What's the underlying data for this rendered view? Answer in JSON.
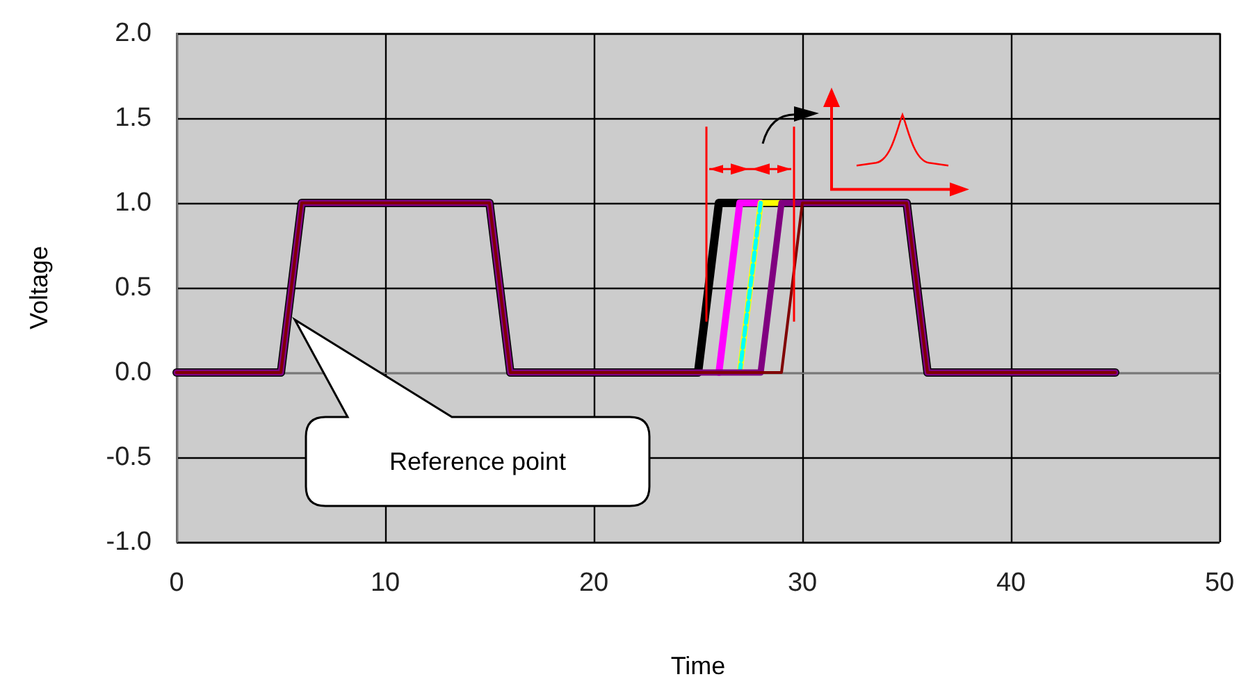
{
  "chart_data": {
    "type": "line",
    "xlabel": "Time",
    "ylabel": "Voltage",
    "xlim": [
      0,
      50
    ],
    "xticks": [
      0,
      10,
      20,
      30,
      40,
      50
    ],
    "ylim": [
      -1,
      2
    ],
    "yticks": [
      {
        "value": -1,
        "label": "-1.0"
      },
      {
        "value": -0.5,
        "label": "-0.5"
      },
      {
        "value": 0,
        "label": "0.0"
      },
      {
        "value": 0.5,
        "label": "0.5"
      },
      {
        "value": 1,
        "label": "1.0"
      },
      {
        "value": 1.5,
        "label": "1.5"
      },
      {
        "value": 2,
        "label": "2.0"
      }
    ],
    "grid": true,
    "marker": "none",
    "annotations": [
      "Reference point"
    ],
    "series": [
      {
        "color": "#000000",
        "x": [
          0,
          5,
          6,
          15,
          16,
          25,
          26,
          35,
          36,
          45
        ],
        "values": [
          0,
          0,
          1,
          1,
          0,
          0,
          1,
          1,
          0,
          0
        ]
      },
      {
        "color": "#ff00ff",
        "x": [
          26,
          27,
          28
        ],
        "values": [
          0,
          1,
          1
        ]
      },
      {
        "color": "#ffff00",
        "x": [
          27,
          28,
          29
        ],
        "values": [
          0,
          1,
          1
        ]
      },
      {
        "color": "#00ffff",
        "line_style": "dashed",
        "x": [
          27,
          28
        ],
        "values": [
          0,
          1
        ]
      },
      {
        "color": "#800080",
        "x": [
          0,
          5,
          6,
          15,
          16,
          28,
          29,
          35,
          36,
          45
        ],
        "values": [
          0,
          0,
          1,
          1,
          0,
          0,
          1,
          1,
          0,
          0
        ]
      },
      {
        "color": "#800000",
        "x": [
          0,
          5,
          6,
          15,
          16,
          29,
          30,
          35,
          36,
          45
        ],
        "values": [
          0,
          0,
          1,
          1,
          0,
          0,
          1,
          1,
          0,
          0
        ]
      }
    ]
  }
}
